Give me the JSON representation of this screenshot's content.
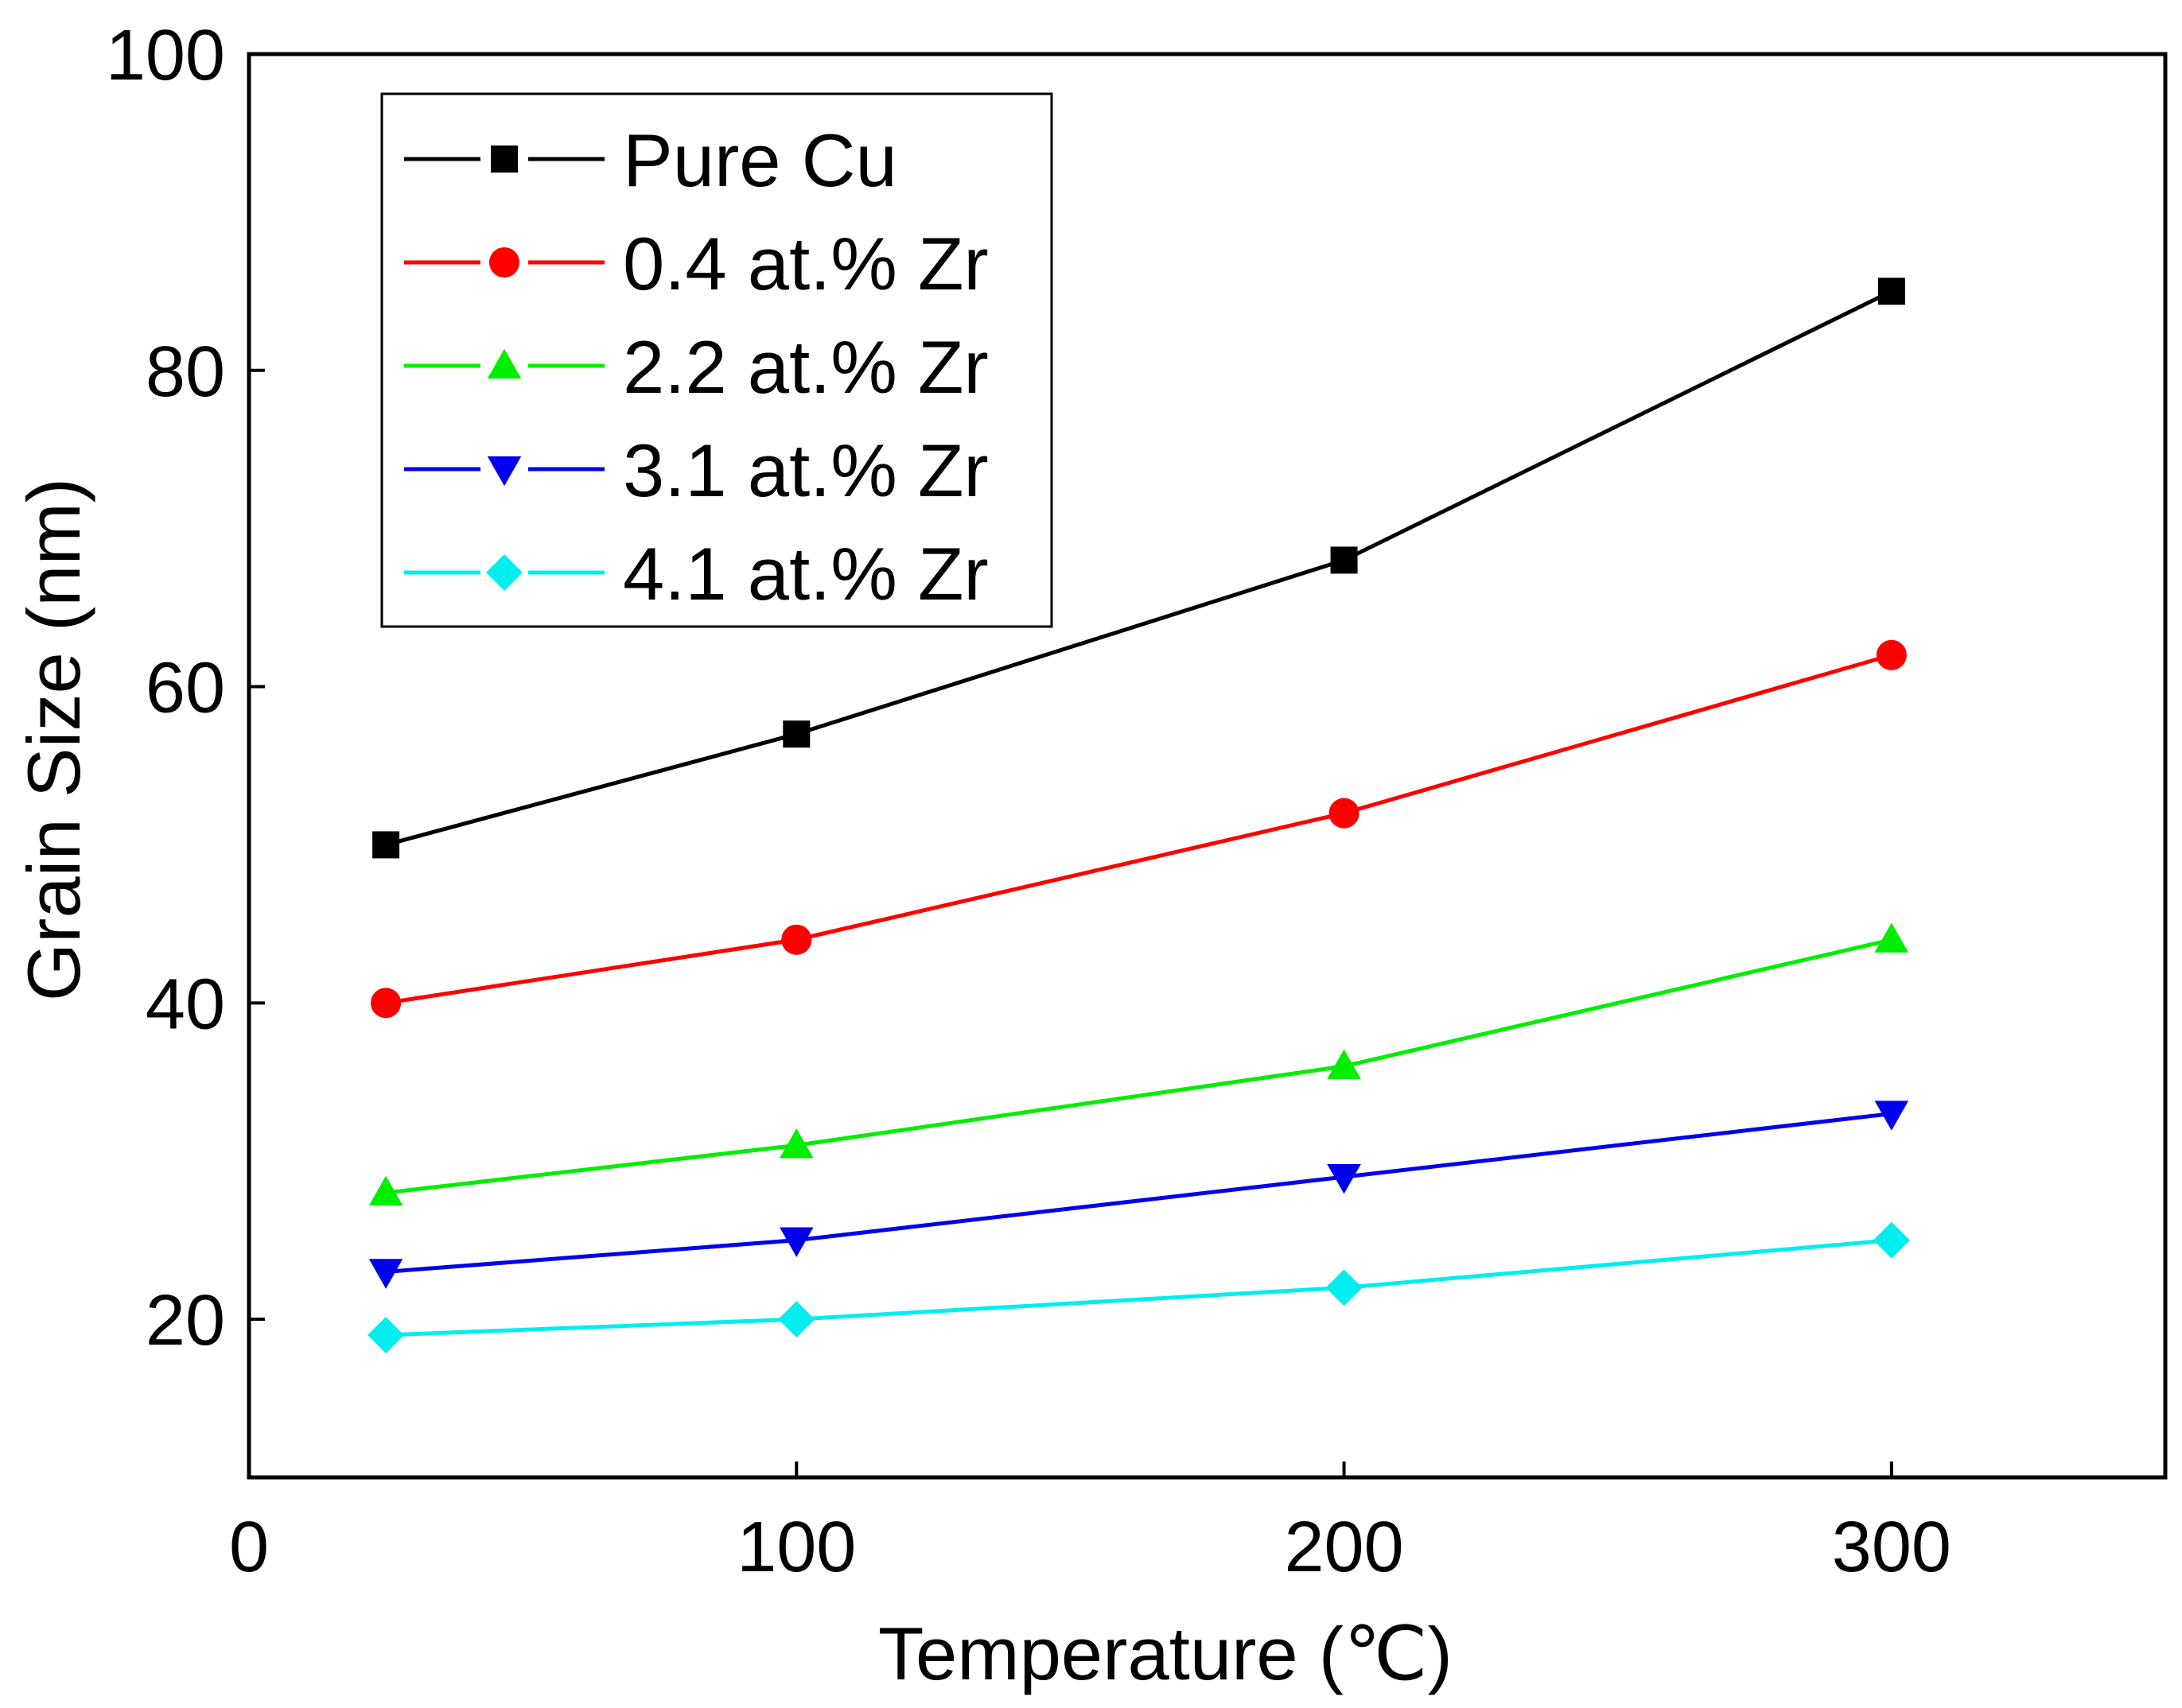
{
  "chart_data": {
    "type": "line",
    "title": "",
    "xlabel": "Temperature (℃)",
    "ylabel": "Grain Size (nm)",
    "xlim": [
      0,
      350
    ],
    "ylim": [
      10,
      100
    ],
    "xticks": [
      0,
      100,
      200,
      300
    ],
    "yticks": [
      20,
      40,
      60,
      80,
      100
    ],
    "x": [
      25,
      100,
      200,
      300
    ],
    "grid": false,
    "legend_position": "top-left",
    "series": [
      {
        "name": "Pure Cu",
        "color": "#000000",
        "marker": "square",
        "values": [
          50,
          57,
          68,
          85
        ]
      },
      {
        "name": "0.4 at.% Zr",
        "color": "#ff0000",
        "marker": "circle",
        "values": [
          40,
          44,
          52,
          62
        ]
      },
      {
        "name": "2.2 at.% Zr",
        "color": "#00ee00",
        "marker": "triangle-up",
        "values": [
          28,
          31,
          36,
          44
        ]
      },
      {
        "name": "3.1 at.% Zr",
        "color": "#0000ee",
        "marker": "triangle-down",
        "values": [
          23,
          25,
          29,
          33
        ]
      },
      {
        "name": "4.1 at.% Zr",
        "color": "#00eeee",
        "marker": "diamond",
        "values": [
          19,
          20,
          22,
          25
        ]
      }
    ]
  }
}
